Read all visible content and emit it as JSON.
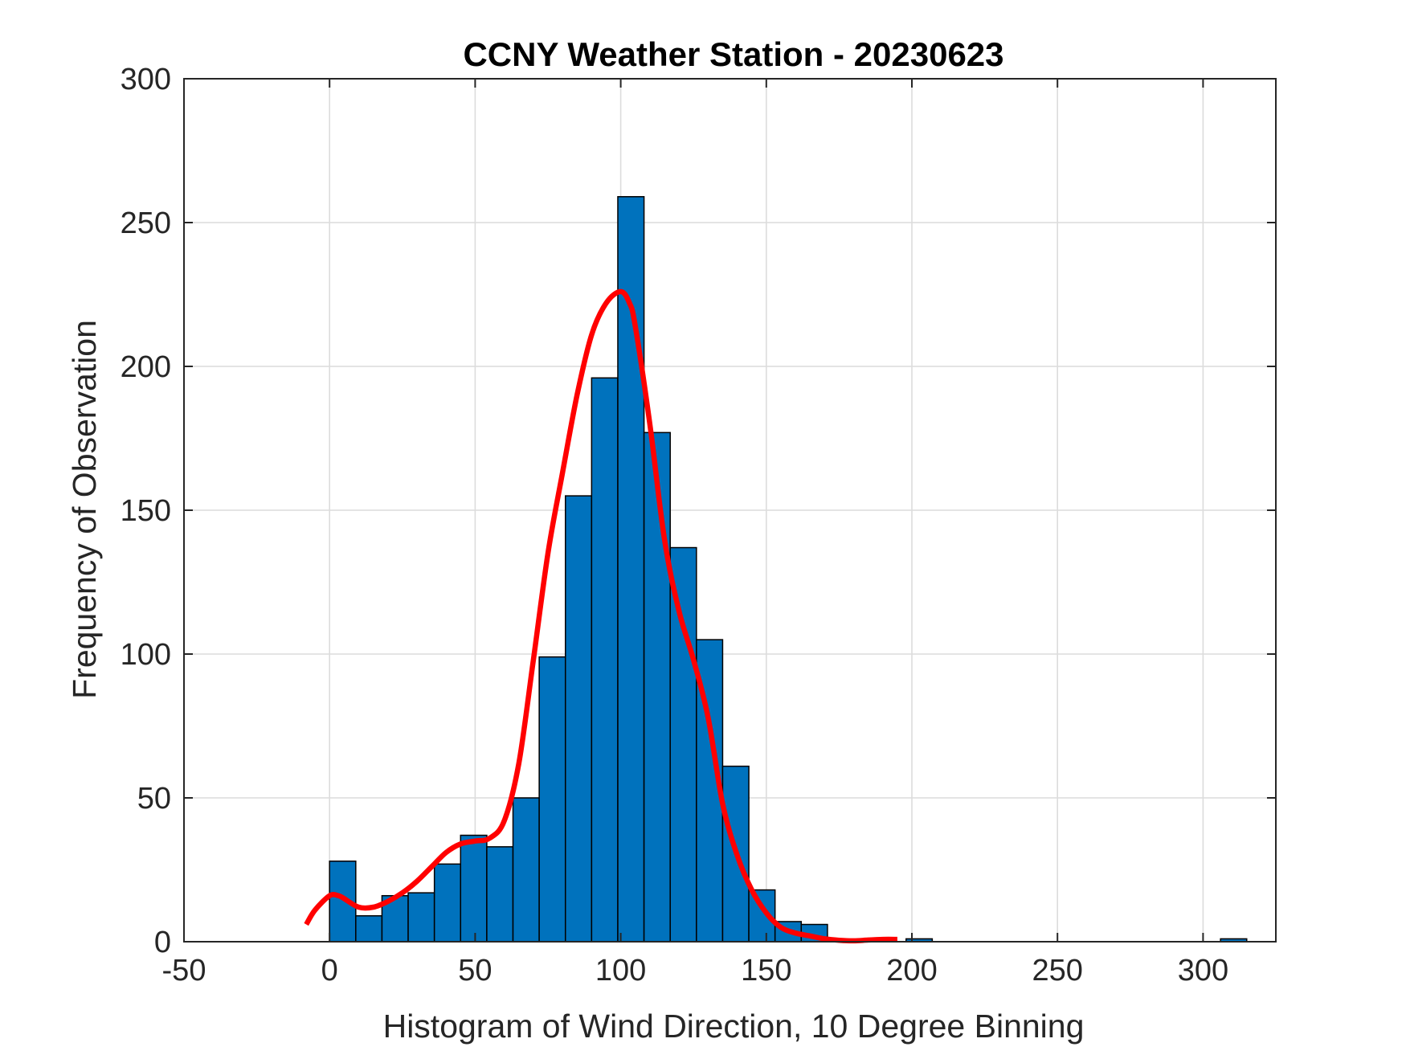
{
  "chart_data": {
    "type": "bar",
    "title": "CCNY Weather Station - 20230623",
    "xlabel": "Histogram of Wind Direction, 10 Degree Binning",
    "ylabel": "Frequency of Observation",
    "xlim": [
      -50,
      325
    ],
    "ylim": [
      0,
      300
    ],
    "xticks": [
      -50,
      0,
      50,
      100,
      150,
      200,
      250,
      300
    ],
    "yticks": [
      0,
      50,
      100,
      150,
      200,
      250,
      300
    ],
    "grid": true,
    "bar_color": "#0072bd",
    "curve_color": "#ff0000",
    "bin_edges": [
      0,
      9,
      18,
      27,
      36,
      45,
      54,
      63,
      72,
      81,
      90,
      99,
      108,
      117,
      126,
      135,
      144,
      153,
      162,
      171,
      180,
      189,
      198,
      207,
      216,
      225,
      234,
      243,
      252,
      261,
      270,
      279,
      288,
      297,
      306,
      315
    ],
    "values": [
      28,
      9,
      16,
      17,
      27,
      37,
      33,
      50,
      99,
      155,
      196,
      259,
      177,
      137,
      105,
      61,
      18,
      7,
      6,
      0,
      0,
      0,
      1,
      0,
      0,
      0,
      0,
      0,
      0,
      0,
      0,
      0,
      0,
      0,
      1
    ],
    "fit_curve": {
      "x": [
        -8,
        -5,
        0,
        3,
        5,
        10,
        15,
        20,
        25,
        30,
        35,
        40,
        45,
        50,
        55,
        60,
        65,
        70,
        75,
        80,
        85,
        90,
        95,
        100,
        103,
        105,
        110,
        115,
        120,
        125,
        130,
        135,
        140,
        145,
        150,
        155,
        160,
        165,
        170,
        175,
        180,
        185,
        190,
        195
      ],
      "y": [
        6,
        11,
        16,
        16,
        15,
        12,
        12,
        14,
        17,
        21,
        26,
        31,
        34,
        35,
        36,
        42,
        62,
        98,
        135,
        163,
        190,
        211,
        222,
        226,
        222,
        214,
        180,
        140,
        115,
        98,
        78,
        48,
        30,
        18,
        10,
        5,
        3,
        2,
        1,
        0.5,
        0.3,
        0.6,
        0.8,
        0.8
      ]
    }
  }
}
